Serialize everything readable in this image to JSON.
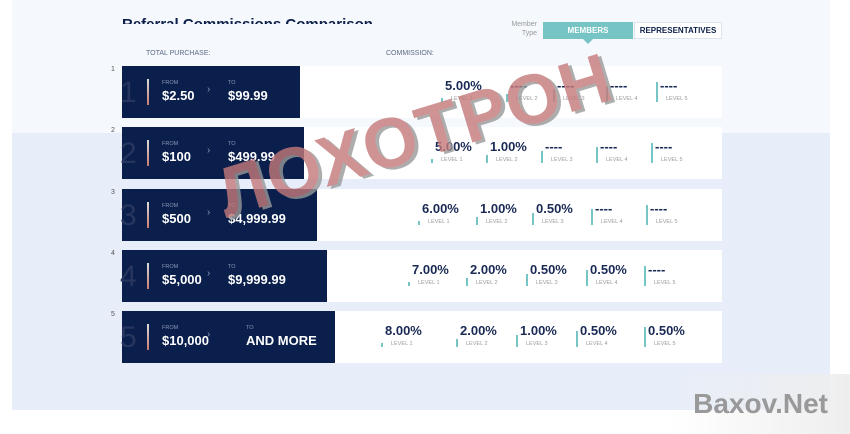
{
  "title": "Referral Commissions Comparison",
  "member_type_label": "Member Type",
  "tabs": [
    {
      "label": "MEMBERS",
      "active": true
    },
    {
      "label": "REPRESENTATIVES",
      "active": false
    }
  ],
  "headers": {
    "purchase": "TOTAL PURCHASE:",
    "commission": "COMMISSION:"
  },
  "from_label": "FROM",
  "to_label": "TO",
  "tiers": [
    {
      "num": "1",
      "from": "$2.50",
      "to": "$99.99",
      "levels": [
        "5.00%",
        "----",
        "----",
        "----",
        "----"
      ]
    },
    {
      "num": "2",
      "from": "$100",
      "to": "$499.99",
      "levels": [
        "5.00%",
        "1.00%",
        "----",
        "----",
        "----"
      ]
    },
    {
      "num": "3",
      "from": "$500",
      "to": "$4,999.99",
      "levels": [
        "6.00%",
        "1.00%",
        "0.50%",
        "----",
        "----"
      ]
    },
    {
      "num": "4",
      "from": "$5,000",
      "to": "$9,999.99",
      "levels": [
        "7.00%",
        "2.00%",
        "0.50%",
        "0.50%",
        "----"
      ]
    },
    {
      "num": "5",
      "from": "$10,000",
      "to": "AND MORE",
      "levels": [
        "8.00%",
        "2.00%",
        "1.00%",
        "0.50%",
        "0.50%"
      ]
    }
  ],
  "level_labels": [
    "LEVEL 1",
    "LEVEL 2",
    "LEVEL 3",
    "LEVEL 4",
    "LEVEL 5"
  ],
  "watermarks": {
    "stamp": "ЛОХОТРОН",
    "site": "Baxov.Net"
  },
  "colors": {
    "navy": "#0b1f4c",
    "teal": "#76c4c4"
  }
}
